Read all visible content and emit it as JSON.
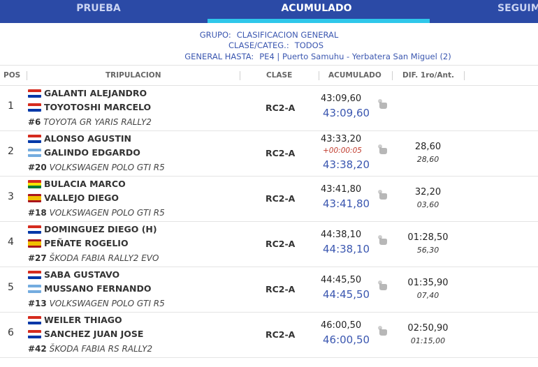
{
  "tabs": [
    {
      "label": "PRUEBA",
      "active": false
    },
    {
      "label": "ACUMULADO",
      "active": true
    },
    {
      "label": "SEGUIM",
      "active": false
    }
  ],
  "filters": {
    "grupo_label": "GRUPO:",
    "grupo_value": "CLASIFICACION GENERAL",
    "clase_label": "CLASE/CATEG.:",
    "clase_value": "TODOS",
    "hasta_label": "GENERAL HASTA:",
    "hasta_value": "PE4 | Puerto Samuhu - Yerbatera San Miguel (2)"
  },
  "columns": {
    "pos": "POS",
    "tripulacion": "TRIPULACION",
    "clase": "CLASE",
    "acumulado": "ACUMULADO",
    "dif": "DIF. 1ro/Ant."
  },
  "accent": "#2b4aa6",
  "rows": [
    {
      "pos": "1",
      "driver": "GALANTI ALEJANDRO",
      "driver_flag": "py",
      "codriver": "TOYOTOSHI MARCELO",
      "codriver_flag": "py",
      "number": "#6",
      "car": "TOYOTA GR YARIS RALLY2",
      "clase": "RC2-A",
      "time": "43:09,60",
      "penalty": "",
      "total": "43:09,60",
      "dif_first": "",
      "dif_prev": ""
    },
    {
      "pos": "2",
      "driver": "ALONSO AGUSTIN",
      "driver_flag": "py",
      "codriver": "GALINDO EDGARDO",
      "codriver_flag": "ar",
      "number": "#20",
      "car": "VOLKSWAGEN POLO GTI R5",
      "clase": "RC2-A",
      "time": "43:33,20",
      "penalty": "+00:00:05",
      "total": "43:38,20",
      "dif_first": "28,60",
      "dif_prev": "28,60"
    },
    {
      "pos": "3",
      "driver": "BULACIA MARCO",
      "driver_flag": "bo",
      "codriver": "VALLEJO DIEGO",
      "codriver_flag": "es",
      "number": "#18",
      "car": "VOLKSWAGEN POLO GTI R5",
      "clase": "RC2-A",
      "time": "43:41,80",
      "penalty": "",
      "total": "43:41,80",
      "dif_first": "32,20",
      "dif_prev": "03,60"
    },
    {
      "pos": "4",
      "driver": "DOMINGUEZ DIEGO (H)",
      "driver_flag": "py",
      "codriver": "PEÑATE ROGELIO",
      "codriver_flag": "es",
      "number": "#27",
      "car": "ŠKODA FABIA RALLY2 EVO",
      "clase": "RC2-A",
      "time": "44:38,10",
      "penalty": "",
      "total": "44:38,10",
      "dif_first": "01:28,50",
      "dif_prev": "56,30"
    },
    {
      "pos": "5",
      "driver": "SABA GUSTAVO",
      "driver_flag": "py",
      "codriver": "MUSSANO FERNANDO",
      "codriver_flag": "ar",
      "number": "#13",
      "car": "VOLKSWAGEN POLO GTI R5",
      "clase": "RC2-A",
      "time": "44:45,50",
      "penalty": "",
      "total": "44:45,50",
      "dif_first": "01:35,90",
      "dif_prev": "07,40"
    },
    {
      "pos": "6",
      "driver": "WEILER THIAGO",
      "driver_flag": "py",
      "codriver": "SANCHEZ JUAN JOSE",
      "codriver_flag": "py",
      "number": "#42",
      "car": "ŠKODA FABIA RS RALLY2",
      "clase": "RC2-A",
      "time": "46:00,50",
      "penalty": "",
      "total": "46:00,50",
      "dif_first": "02:50,90",
      "dif_prev": "01:15,00"
    }
  ]
}
